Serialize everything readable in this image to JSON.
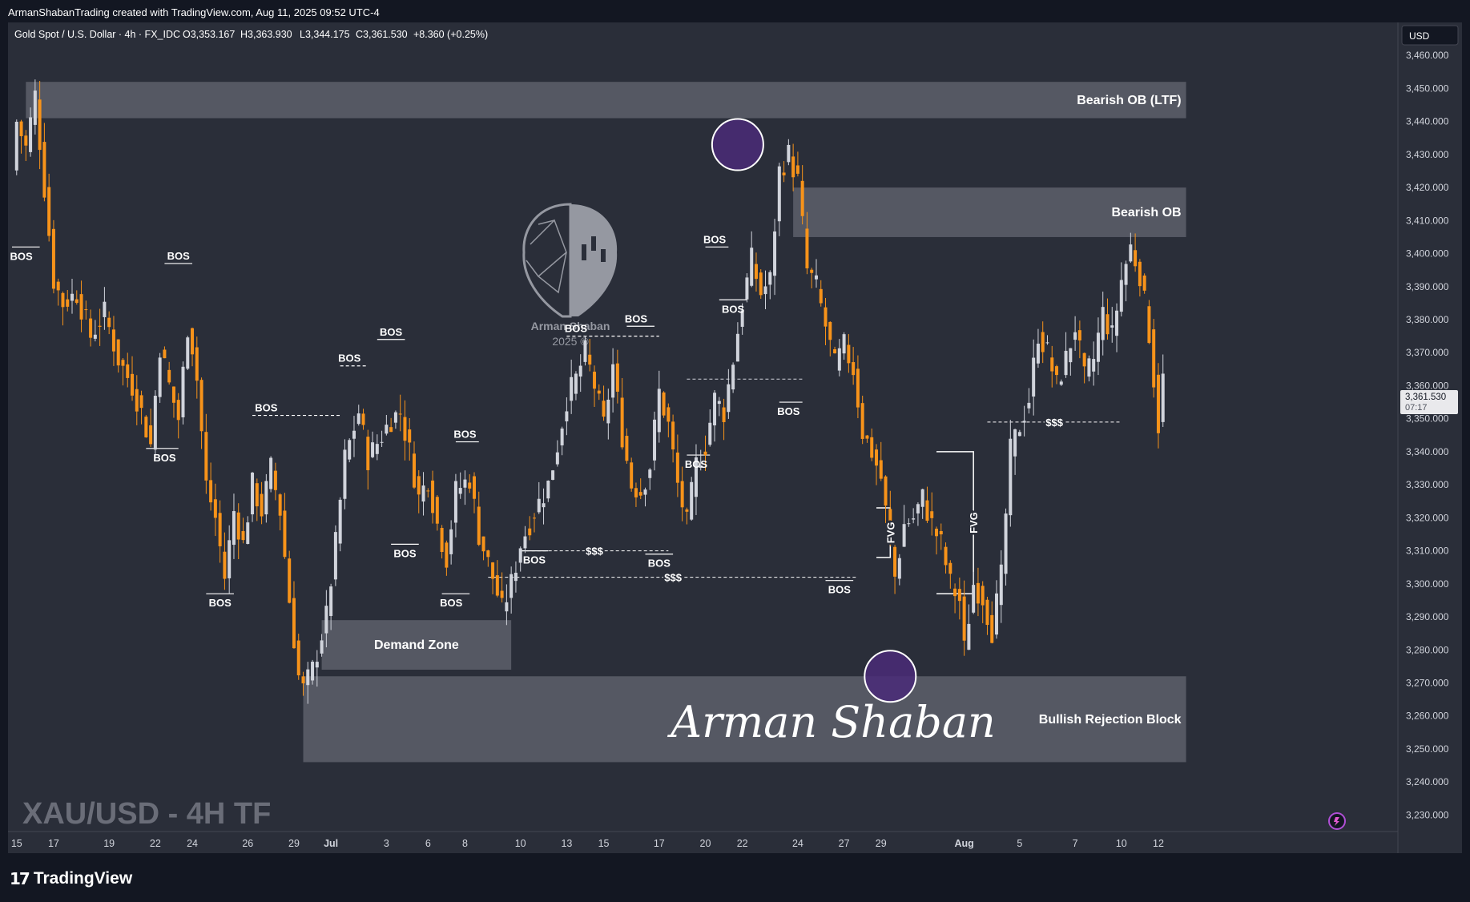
{
  "header": {
    "credit": "ArmanShabanTrading created with TradingView.com, Aug 11, 2025 09:52 UTC-4",
    "symbol_line": "Gold Spot / U.S. Dollar · 4h · FX_IDC",
    "ohlc": {
      "open": "O3,353.167",
      "high": "H3,363.930",
      "low": "L3,344.175",
      "close": "C3,361.530",
      "change": "+8.360 (+0.25%)"
    }
  },
  "currency": "USD",
  "price_tag": {
    "price": "3,361.530",
    "countdown": "07:17"
  },
  "watermark": {
    "title": "XAU/USD - 4H TF",
    "brand_line1": "Arman Shaban",
    "brand_line2": "2025 ©",
    "signature": "Arman Shaban"
  },
  "footer": {
    "brand": "TradingView"
  },
  "colors": {
    "background": "#2a2e39",
    "up": "#d1d4dc",
    "down": "#f7931a",
    "zone": "#787b86",
    "circle": "#4a2a78"
  },
  "chart_data": {
    "type": "candlestick",
    "title": "",
    "ylim": [
      3225,
      3470
    ],
    "y_ticks": [
      3460,
      3450,
      3440,
      3430,
      3420,
      3410,
      3400,
      3390,
      3380,
      3370,
      3360,
      3350,
      3340,
      3330,
      3320,
      3310,
      3300,
      3290,
      3280,
      3270,
      3260,
      3250,
      3240,
      3230
    ],
    "y_tick_labels": [
      "3,460.000",
      "3,450.000",
      "3,440.000",
      "3,430.000",
      "3,420.000",
      "3,410.000",
      "3,400.000",
      "3,390.000",
      "3,380.000",
      "3,370.000",
      "3,360.000",
      "3,350.000",
      "3,340.000",
      "3,330.000",
      "3,320.000",
      "3,310.000",
      "3,300.000",
      "3,290.000",
      "3,280.000",
      "3,270.000",
      "3,260.000",
      "3,250.000",
      "3,240.000",
      "3,230.000"
    ],
    "x_labels": [
      {
        "label": "15",
        "bar": 1
      },
      {
        "label": "17",
        "bar": 9
      },
      {
        "label": "19",
        "bar": 21
      },
      {
        "label": "22",
        "bar": 31
      },
      {
        "label": "24",
        "bar": 39
      },
      {
        "label": "26",
        "bar": 51
      },
      {
        "label": "29",
        "bar": 61
      },
      {
        "label": "Jul",
        "bar": 69
      },
      {
        "label": "3",
        "bar": 81
      },
      {
        "label": "6",
        "bar": 90
      },
      {
        "label": "8",
        "bar": 98
      },
      {
        "label": "10",
        "bar": 110
      },
      {
        "label": "13",
        "bar": 120
      },
      {
        "label": "15",
        "bar": 128
      },
      {
        "label": "17",
        "bar": 140
      },
      {
        "label": "20",
        "bar": 150
      },
      {
        "label": "22",
        "bar": 158
      },
      {
        "label": "24",
        "bar": 170
      },
      {
        "label": "27",
        "bar": 180
      },
      {
        "label": "29",
        "bar": 188
      },
      {
        "label": "Aug",
        "bar": 206
      },
      {
        "label": "5",
        "bar": 218
      },
      {
        "label": "7",
        "bar": 230
      },
      {
        "label": "10",
        "bar": 240
      },
      {
        "label": "12",
        "bar": 248
      }
    ],
    "ohlc_anchors": [
      [
        0,
        3425
      ],
      [
        1,
        3440
      ],
      [
        3,
        3432
      ],
      [
        5,
        3448
      ],
      [
        7,
        3420
      ],
      [
        9,
        3392
      ],
      [
        11,
        3385
      ],
      [
        14,
        3388
      ],
      [
        17,
        3375
      ],
      [
        20,
        3382
      ],
      [
        23,
        3368
      ],
      [
        26,
        3360
      ],
      [
        28,
        3352
      ],
      [
        30,
        3342
      ],
      [
        32,
        3372
      ],
      [
        34,
        3360
      ],
      [
        36,
        3350
      ],
      [
        38,
        3378
      ],
      [
        39,
        3372
      ],
      [
        40,
        3362
      ],
      [
        42,
        3330
      ],
      [
        44,
        3320
      ],
      [
        46,
        3302
      ],
      [
        48,
        3322
      ],
      [
        50,
        3312
      ],
      [
        52,
        3330
      ],
      [
        54,
        3322
      ],
      [
        56,
        3335
      ],
      [
        58,
        3322
      ],
      [
        60,
        3295
      ],
      [
        62,
        3272
      ],
      [
        63,
        3268
      ],
      [
        65,
        3274
      ],
      [
        68,
        3290
      ],
      [
        70,
        3312
      ],
      [
        72,
        3338
      ],
      [
        75,
        3352
      ],
      [
        77,
        3338
      ],
      [
        80,
        3345
      ],
      [
        82,
        3350
      ],
      [
        84,
        3352
      ],
      [
        86,
        3340
      ],
      [
        88,
        3326
      ],
      [
        90,
        3332
      ],
      [
        92,
        3318
      ],
      [
        94,
        3308
      ],
      [
        96,
        3328
      ],
      [
        99,
        3332
      ],
      [
        101,
        3315
      ],
      [
        104,
        3302
      ],
      [
        106,
        3292
      ],
      [
        108,
        3300
      ],
      [
        110,
        3312
      ],
      [
        113,
        3322
      ],
      [
        116,
        3330
      ],
      [
        118,
        3342
      ],
      [
        120,
        3356
      ],
      [
        122,
        3362
      ],
      [
        124,
        3370
      ],
      [
        126,
        3360
      ],
      [
        128,
        3348
      ],
      [
        130,
        3366
      ],
      [
        132,
        3345
      ],
      [
        134,
        3330
      ],
      [
        136,
        3328
      ],
      [
        138,
        3336
      ],
      [
        140,
        3358
      ],
      [
        142,
        3348
      ],
      [
        144,
        3330
      ],
      [
        146,
        3318
      ],
      [
        148,
        3336
      ],
      [
        150,
        3342
      ],
      [
        152,
        3356
      ],
      [
        154,
        3352
      ],
      [
        156,
        3368
      ],
      [
        158,
        3385
      ],
      [
        160,
        3398
      ],
      [
        162,
        3388
      ],
      [
        164,
        3392
      ],
      [
        166,
        3425
      ],
      [
        168,
        3430
      ],
      [
        170,
        3422
      ],
      [
        172,
        3395
      ],
      [
        174,
        3390
      ],
      [
        176,
        3378
      ],
      [
        178,
        3366
      ],
      [
        180,
        3372
      ],
      [
        182,
        3365
      ],
      [
        184,
        3346
      ],
      [
        186,
        3340
      ],
      [
        188,
        3332
      ],
      [
        190,
        3312
      ],
      [
        191,
        3302
      ],
      [
        193,
        3318
      ],
      [
        195,
        3320
      ],
      [
        197,
        3326
      ],
      [
        199,
        3318
      ],
      [
        201,
        3312
      ],
      [
        203,
        3300
      ],
      [
        205,
        3295
      ],
      [
        206,
        3280
      ],
      [
        208,
        3300
      ],
      [
        210,
        3296
      ],
      [
        212,
        3286
      ],
      [
        214,
        3302
      ],
      [
        216,
        3340
      ],
      [
        218,
        3348
      ],
      [
        220,
        3356
      ],
      [
        222,
        3376
      ],
      [
        224,
        3370
      ],
      [
        226,
        3360
      ],
      [
        228,
        3368
      ],
      [
        230,
        3378
      ],
      [
        232,
        3362
      ],
      [
        234,
        3368
      ],
      [
        236,
        3382
      ],
      [
        238,
        3375
      ],
      [
        240,
        3392
      ],
      [
        242,
        3402
      ],
      [
        244,
        3394
      ],
      [
        246,
        3376
      ],
      [
        248,
        3348
      ],
      [
        249,
        3362
      ]
    ],
    "zones": [
      {
        "label": "Bearish OB (LTF)",
        "from_bar": 3,
        "to_bar": 254,
        "high": 3452,
        "low": 3441
      },
      {
        "label": "Bearish OB",
        "from_bar": 169,
        "to_bar": 254,
        "high": 3420,
        "low": 3405
      },
      {
        "label": "Demand Zone",
        "from_bar": 67,
        "to_bar": 108,
        "high": 3289,
        "low": 3274
      },
      {
        "label": "Bullish Rejection Block",
        "from_bar": 63,
        "to_bar": 254,
        "high": 3272,
        "low": 3246
      }
    ],
    "annotations": [
      {
        "text": "BOS",
        "bar": 2,
        "price": 3402,
        "line_from": 0,
        "line_to": 6,
        "side": "below"
      },
      {
        "text": "BOS",
        "bar": 36,
        "price": 3397,
        "line_from": 33,
        "line_to": 39,
        "side": "above"
      },
      {
        "text": "BOS",
        "bar": 33,
        "price": 3341,
        "line_from": 29,
        "line_to": 36,
        "side": "below"
      },
      {
        "text": "BOS",
        "bar": 45,
        "price": 3297,
        "line_from": 42,
        "line_to": 48,
        "side": "below"
      },
      {
        "text": "BOS",
        "bar": 55,
        "price": 3351,
        "line_from": 52,
        "line_to": 71,
        "side": "above",
        "dashed": true
      },
      {
        "text": "BOS",
        "bar": 73,
        "price": 3366,
        "line_from": 71,
        "line_to": 77,
        "side": "above",
        "dashed": true
      },
      {
        "text": "BOS",
        "bar": 82,
        "price": 3374,
        "line_from": 79,
        "line_to": 85,
        "side": "above"
      },
      {
        "text": "BOS",
        "bar": 85,
        "price": 3312,
        "line_from": 82,
        "line_to": 88,
        "side": "below"
      },
      {
        "text": "BOS",
        "bar": 98,
        "price": 3343,
        "line_from": 96,
        "line_to": 101,
        "side": "above"
      },
      {
        "text": "BOS",
        "bar": 95,
        "price": 3297,
        "line_from": 93,
        "line_to": 99,
        "side": "below"
      },
      {
        "text": "BOS",
        "bar": 113,
        "price": 3310,
        "line_from": 110,
        "line_to": 116,
        "side": "below"
      },
      {
        "text": "BOS",
        "bar": 122,
        "price": 3375,
        "line_from": 120,
        "line_to": 140,
        "side": "above",
        "dashed": true
      },
      {
        "text": "BOS",
        "bar": 135,
        "price": 3378,
        "line_from": 133,
        "line_to": 139,
        "side": "above"
      },
      {
        "text": "BOS",
        "bar": 140,
        "price": 3309,
        "line_from": 137,
        "line_to": 143,
        "side": "below"
      },
      {
        "text": "BOS",
        "bar": 148,
        "price": 3339,
        "line_from": 146,
        "line_to": 151,
        "side": "below"
      },
      {
        "text": "BOS",
        "bar": 152,
        "price": 3402,
        "line_from": 150,
        "line_to": 155,
        "side": "above"
      },
      {
        "text": "BOS",
        "bar": 156,
        "price": 3386,
        "line_from": 153,
        "line_to": 159,
        "side": "below"
      },
      {
        "text": "BOS",
        "bar": 168,
        "price": 3355,
        "line_from": 166,
        "line_to": 171,
        "side": "below"
      },
      {
        "text": "BOS",
        "bar": 179,
        "price": 3301,
        "line_from": 176,
        "line_to": 182,
        "side": "below"
      }
    ],
    "liquidity_lines": [
      {
        "text": "$$$",
        "price": 3310,
        "from_bar": 110,
        "to_bar": 142
      },
      {
        "text": "$$$",
        "price": 3302,
        "from_bar": 103,
        "to_bar": 183
      },
      {
        "text": "$$$",
        "price": 3349,
        "from_bar": 211,
        "to_bar": 240
      }
    ],
    "fvg": [
      {
        "text": "FVG",
        "from_bar": 187,
        "to_bar": 190,
        "high": 3323,
        "low": 3308
      },
      {
        "text": "FVG",
        "from_bar": 200,
        "to_bar": 208,
        "high": 3340,
        "low": 3297
      }
    ],
    "highlights": [
      {
        "bar": 157,
        "price": 3433
      },
      {
        "bar": 190,
        "price": 3272
      }
    ],
    "crosshair_dashed_lines": [
      {
        "price": 3362,
        "from_bar": 146,
        "to_bar": 171
      }
    ]
  }
}
